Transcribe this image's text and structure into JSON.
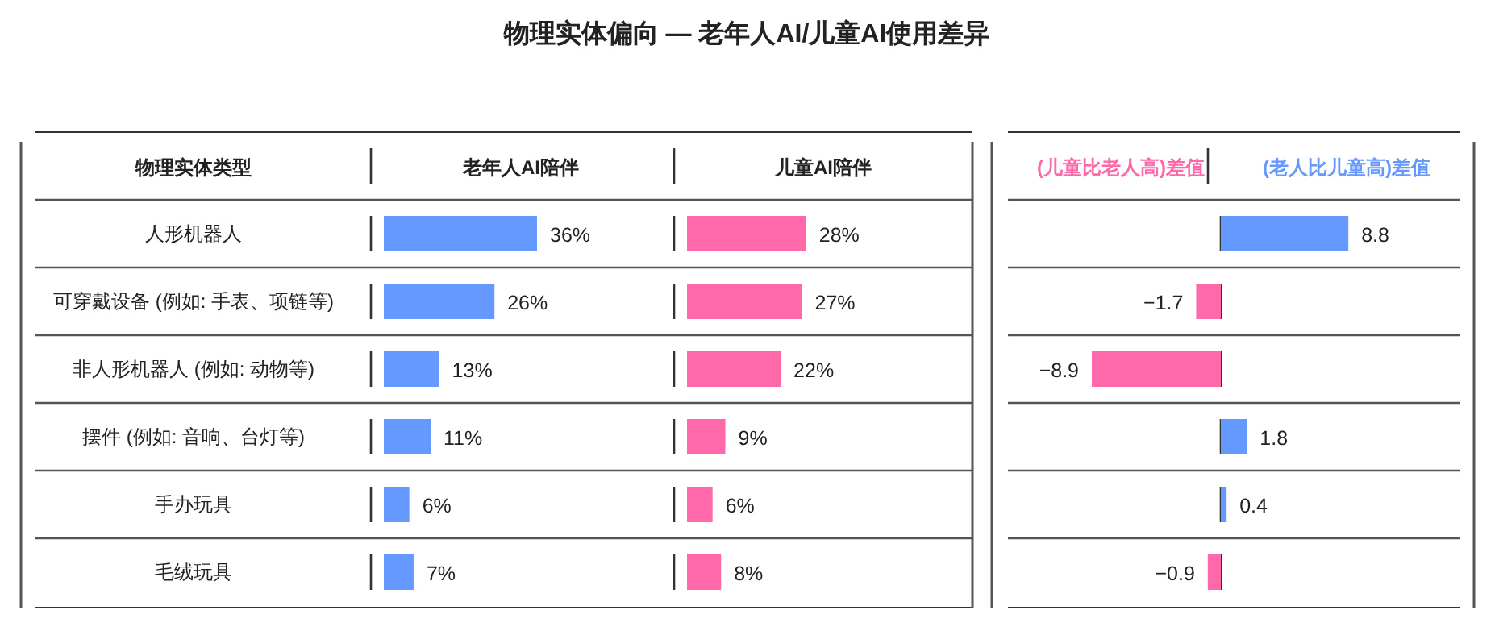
{
  "chart_data": [
    {
      "type": "bar",
      "orientation": "horizontal",
      "title": "物理实体偏向 — 老年人AI/儿童AI使用差异",
      "ylabel": "物理实体类型",
      "xlabel": "老年人AI陪伴",
      "tick_labels": "y",
      "categories": [
        "人形机器人",
        "可穿戴设备 (例如: 手表、项链等)",
        "非人形机器人 (例如: 动物等)",
        "摆件 (例如: 音响、台灯等)",
        "手办玩具",
        "毛绒玩具"
      ],
      "color": "#6699ff",
      "values": [
        36,
        26,
        13,
        11,
        6,
        7
      ],
      "value_labels": [
        "36%",
        "26%",
        "13%",
        "11%",
        "6%",
        "7%"
      ]
    },
    {
      "type": "bar",
      "orientation": "horizontal",
      "xlabel": "儿童AI陪伴",
      "tick_labels": false,
      "categories": [
        null,
        null,
        null,
        null,
        null,
        null
      ],
      "color": "#ff69aa",
      "values": [
        28,
        27,
        22,
        9,
        6,
        8
      ],
      "value_labels": [
        "28%",
        "27%",
        "22%",
        "9%",
        "6%",
        "8%"
      ]
    },
    {
      "type": "bar",
      "orientation": "horizontal",
      "tick_labels": false,
      "legend": "top",
      "categories": [
        null,
        null,
        null,
        null,
        null,
        null
      ],
      "series": [
        {
          "name": "(儿童比老人高)差值",
          "color": "#ff69aa",
          "values": [
            null,
            -1.7,
            -8.9,
            null,
            null,
            -0.9
          ],
          "value_labels": [
            null,
            "−1.7",
            "−8.9",
            null,
            null,
            "−0.9"
          ]
        },
        {
          "name": "(老人比儿童高)差值",
          "color": "#6699ff",
          "values": [
            8.8,
            null,
            null,
            1.8,
            0.4,
            null
          ],
          "value_labels": [
            "8.8",
            null,
            null,
            "1.8",
            "0.4",
            null
          ]
        }
      ]
    }
  ]
}
